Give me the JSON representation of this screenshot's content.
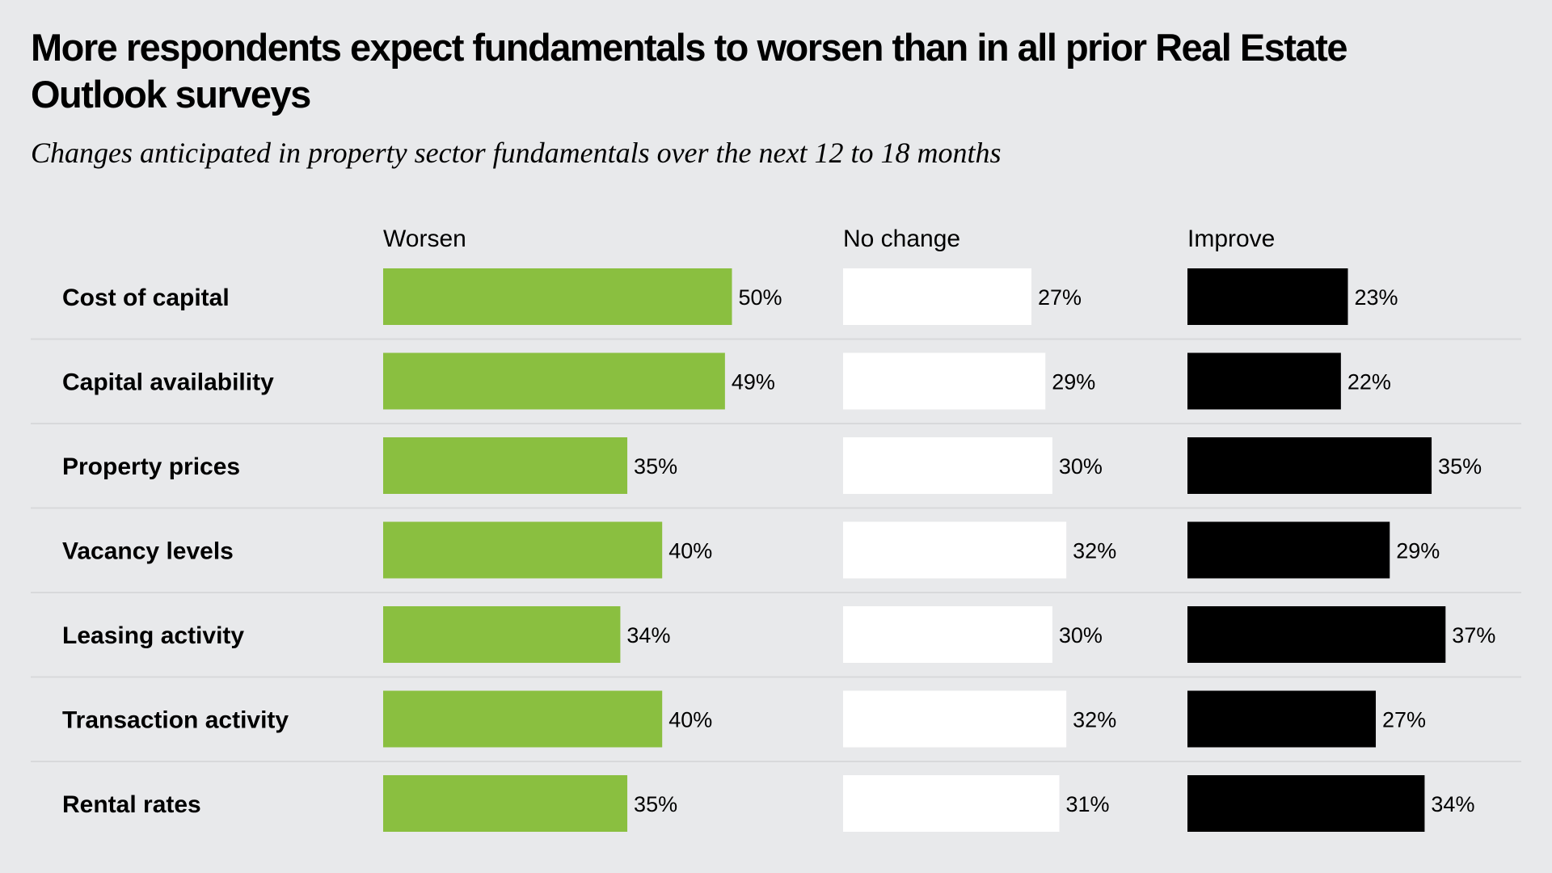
{
  "header": {
    "title": "More respondents expect fundamentals to worsen than in all prior Real Estate Outlook surveys",
    "subtitle": "Changes anticipated in property sector fundamentals over the next 12 to 18 months"
  },
  "chart_data": {
    "type": "bar",
    "title": "More respondents expect fundamentals to worsen than in all prior Real Estate Outlook surveys",
    "subtitle": "Changes anticipated in property sector fundamentals over the next 12 to 18 months",
    "orientation": "horizontal",
    "categories": [
      "Cost of capital",
      "Capital availability",
      "Property prices",
      "Vacancy levels",
      "Leasing activity",
      "Transaction activity",
      "Rental rates"
    ],
    "series": [
      {
        "name": "Worsen",
        "color": "#8abf40",
        "values": [
          50,
          49,
          35,
          40,
          34,
          40,
          35
        ]
      },
      {
        "name": "No change",
        "color": "#ffffff",
        "values": [
          27,
          29,
          30,
          32,
          30,
          32,
          31
        ]
      },
      {
        "name": "Improve",
        "color": "#000000",
        "values": [
          23,
          22,
          35,
          29,
          37,
          27,
          34
        ]
      }
    ],
    "unit": "%",
    "xlim": [
      0,
      100
    ],
    "grid": false
  }
}
